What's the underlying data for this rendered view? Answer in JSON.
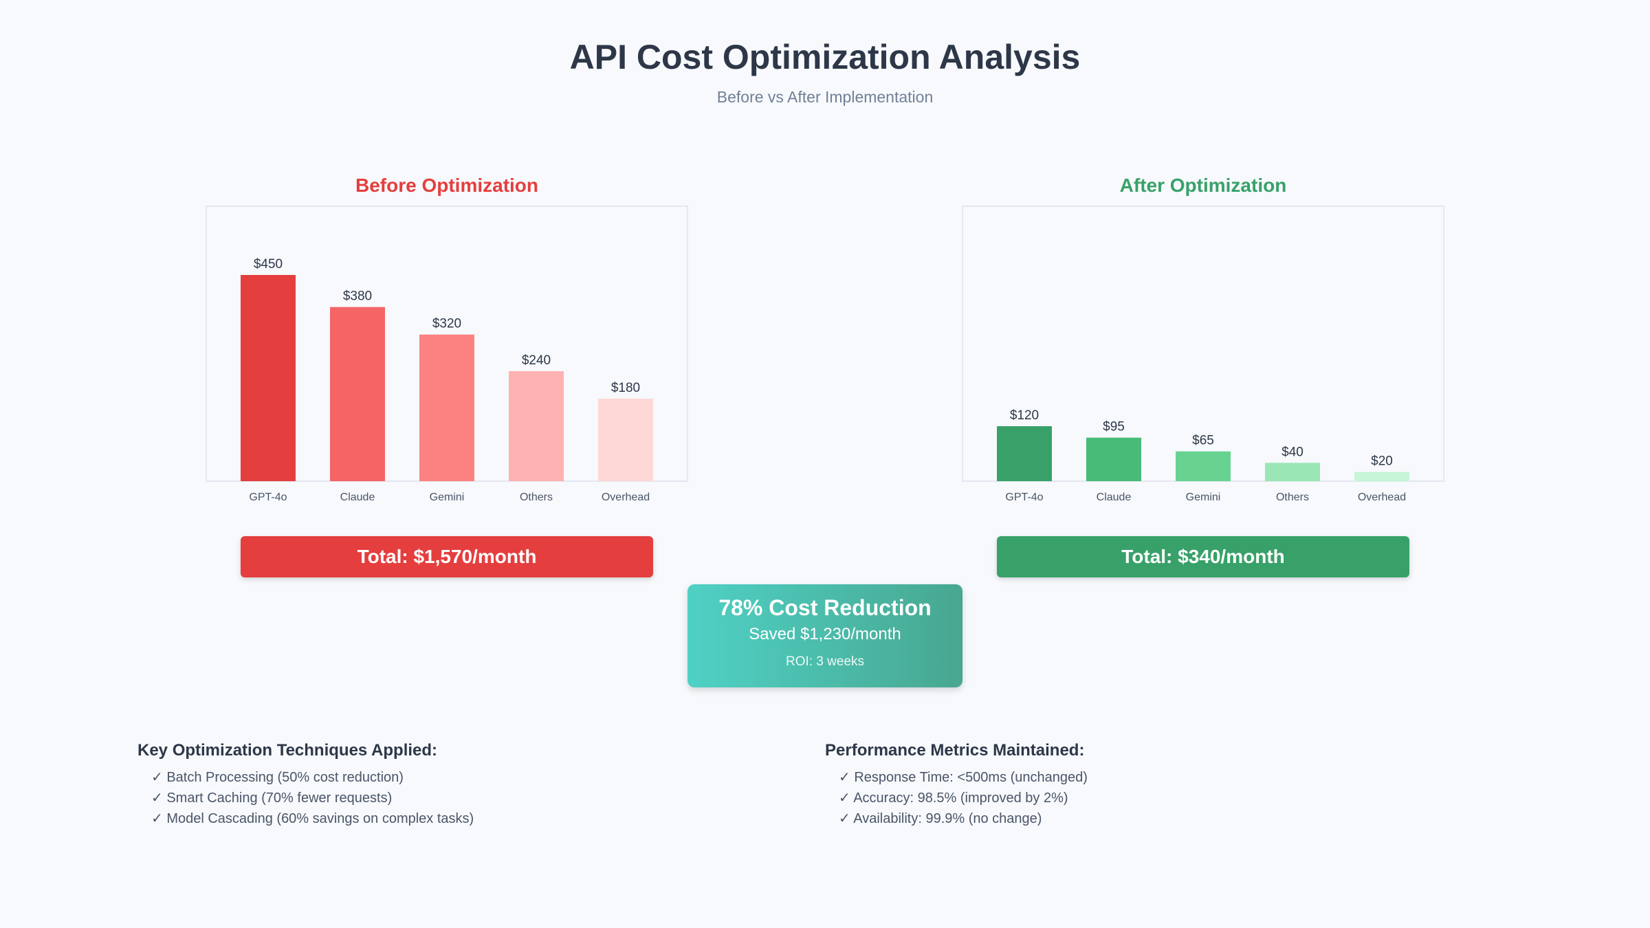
{
  "header": {
    "title": "API Cost Optimization Analysis",
    "subtitle": "Before vs After Implementation"
  },
  "chart_data": [
    {
      "type": "bar",
      "title": "Before Optimization",
      "categories": [
        "GPT-4o",
        "Claude",
        "Gemini",
        "Others",
        "Overhead"
      ],
      "values": [
        450,
        380,
        320,
        240,
        180
      ],
      "value_labels": [
        "$450",
        "$380",
        "$320",
        "$240",
        "$180"
      ],
      "colors": [
        "#e53e3e",
        "#f56565",
        "#fc8181",
        "#feb2b2",
        "#fed7d7"
      ],
      "xlabel": "",
      "ylabel": "",
      "ylim": [
        0,
        600
      ],
      "grid": false,
      "total": "Total: $1,570/month"
    },
    {
      "type": "bar",
      "title": "After Optimization",
      "categories": [
        "GPT-4o",
        "Claude",
        "Gemini",
        "Others",
        "Overhead"
      ],
      "values": [
        120,
        95,
        65,
        40,
        20
      ],
      "value_labels": [
        "$120",
        "$95",
        "$65",
        "$40",
        "$20"
      ],
      "colors": [
        "#38a169",
        "#48bb78",
        "#68d391",
        "#9ae6b4",
        "#c6f6d5"
      ],
      "xlabel": "",
      "ylabel": "",
      "ylim": [
        0,
        600
      ],
      "grid": false,
      "total": "Total: $340/month"
    }
  ],
  "summary": {
    "reduction": "78% Cost Reduction",
    "saved": "Saved $1,230/month",
    "roi": "ROI: 3 weeks"
  },
  "techniques": {
    "heading": "Key Optimization Techniques Applied:",
    "items": [
      "✓ Batch Processing (50% cost reduction)",
      "✓ Smart Caching (70% fewer requests)",
      "✓ Model Cascading (60% savings on complex tasks)"
    ]
  },
  "metrics": {
    "heading": "Performance Metrics Maintained:",
    "items": [
      "✓ Response Time: <500ms (unchanged)",
      "✓ Accuracy: 98.5% (improved by 2%)",
      "✓ Availability: 99.9% (no change)"
    ]
  }
}
